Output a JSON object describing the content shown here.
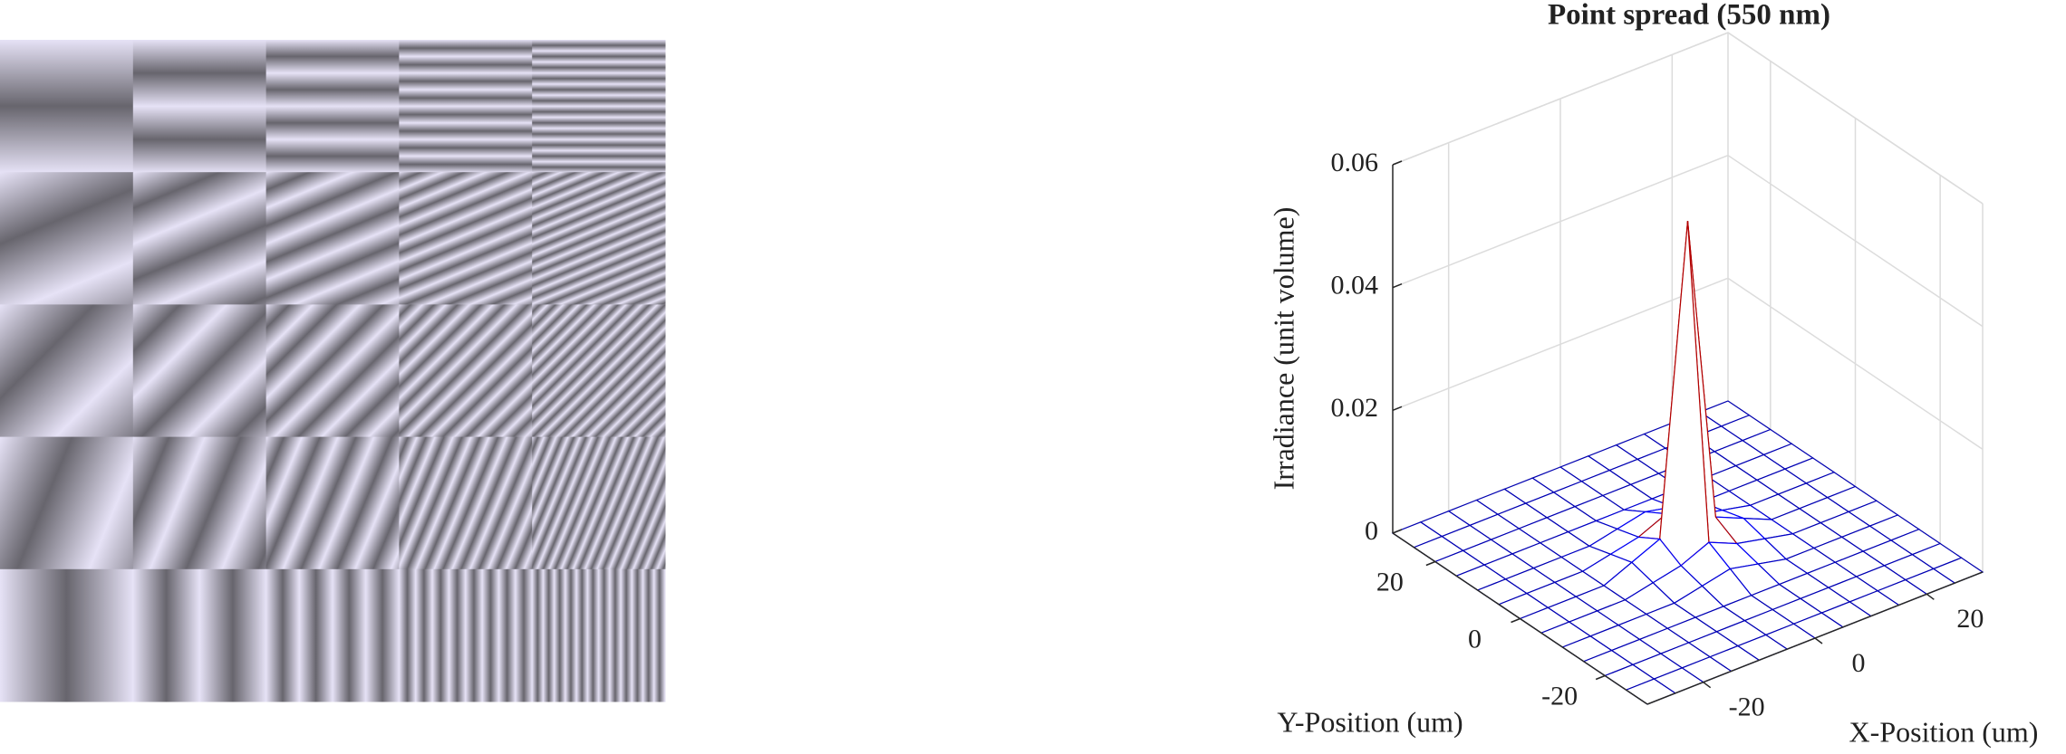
{
  "chart_data": {
    "type": "surface",
    "title": "Point spread (550 nm)",
    "xlabel": "X-Position (um)",
    "ylabel": "Y-Position (um)",
    "zlabel": "Irradiance (unit volume)",
    "x": [
      -30,
      -25,
      -20,
      -15,
      -10,
      -5,
      0,
      5,
      10,
      15,
      20,
      25,
      30
    ],
    "y": [
      -30,
      -25,
      -20,
      -15,
      -10,
      -5,
      0,
      5,
      10,
      15,
      20,
      25,
      30
    ],
    "z": [
      [
        0,
        0,
        0,
        0,
        0,
        0,
        0,
        0,
        0,
        0,
        0,
        0,
        0
      ],
      [
        0,
        0,
        0,
        0,
        0,
        0,
        0,
        0,
        0,
        0,
        0,
        0,
        0
      ],
      [
        0,
        0,
        0,
        0,
        0,
        0,
        0,
        0,
        0,
        0,
        0,
        0,
        0
      ],
      [
        0,
        0,
        0,
        0,
        0,
        0,
        0,
        0,
        0,
        0,
        0,
        0,
        0
      ],
      [
        0,
        0,
        0,
        0,
        0,
        0.001,
        0.002,
        0.001,
        0,
        0,
        0,
        0,
        0
      ],
      [
        0,
        0,
        0,
        0,
        0.001,
        0.002,
        0.004,
        0.002,
        0.001,
        0,
        0,
        0,
        0
      ],
      [
        0,
        0,
        0,
        0,
        0.002,
        0.004,
        0.054,
        0.004,
        0.002,
        0,
        0,
        0,
        0
      ],
      [
        0,
        0,
        0,
        0,
        0.001,
        0.002,
        0.004,
        0.002,
        0.001,
        0,
        0,
        0,
        0
      ],
      [
        0,
        0,
        0,
        0,
        0,
        0.001,
        0.002,
        0.001,
        0,
        0,
        0,
        0,
        0
      ],
      [
        0,
        0,
        0,
        0,
        0,
        0,
        0,
        0,
        0,
        0,
        0,
        0,
        0
      ],
      [
        0,
        0,
        0,
        0,
        0,
        0,
        0,
        0,
        0,
        0,
        0,
        0,
        0
      ],
      [
        0,
        0,
        0,
        0,
        0,
        0,
        0,
        0,
        0,
        0,
        0,
        0,
        0
      ],
      [
        0,
        0,
        0,
        0,
        0,
        0,
        0,
        0,
        0,
        0,
        0,
        0,
        0
      ]
    ],
    "xlim": [
      -30,
      30
    ],
    "ylim": [
      -30,
      30
    ],
    "zlim": [
      0,
      0.06
    ],
    "xticks": [
      -20,
      0,
      20
    ],
    "yticks": [
      -20,
      0,
      20
    ],
    "zticks": [
      0,
      0.02,
      0.04,
      0.06
    ],
    "colormap": "jet",
    "grid": true
  }
}
